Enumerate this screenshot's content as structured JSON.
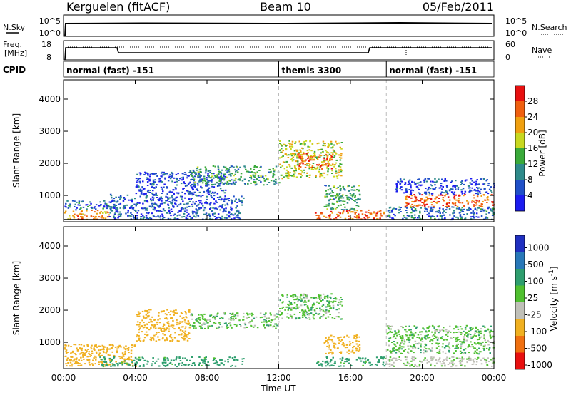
{
  "header": {
    "station": "Kerguelen (fitACF)",
    "beam": "Beam 10",
    "date": "05/Feb/2011"
  },
  "summary_panels": {
    "nsky_label": "N.Sky",
    "nsky_ticks": [
      "10^5",
      "10^0"
    ],
    "nsearch_label": "N.Search",
    "nsearch_ticks": [
      "10^5",
      "10^0"
    ],
    "freq_label": "Freq.",
    "freq_unit": "[MHz]",
    "freq_ticks": [
      "18",
      "8"
    ],
    "nave_label": "Nave",
    "nave_ticks": [
      "60",
      "0"
    ],
    "cpid_label": "CPID",
    "cpid_segments": [
      {
        "name": "normal (fast) -151",
        "start_h": 0,
        "end_h": 12
      },
      {
        "name": "themis 3300",
        "start_h": 12,
        "end_h": 18
      },
      {
        "name": "normal (fast) -151",
        "start_h": 18,
        "end_h": 24
      }
    ]
  },
  "chart_data": [
    {
      "type": "heatmap",
      "title": "",
      "quantity": "Power",
      "ylabel": "Slant Range [km]",
      "ylim": [
        180,
        4600
      ],
      "yticks": [
        "1000",
        "2000",
        "3000",
        "4000"
      ],
      "colorbar_label": "Power [dB]",
      "colorbar_ticks": [
        "4",
        "8",
        "12",
        "16",
        "20",
        "24",
        "28"
      ],
      "colorbar_range": [
        0,
        32
      ],
      "colors": [
        "#1c1cf0",
        "#2050c8",
        "#2e8a8a",
        "#3aaa3a",
        "#c8d820",
        "#f0a010",
        "#f06010",
        "#e81010"
      ],
      "regions": [
        {
          "t0": 0,
          "t1": 2.5,
          "r0": 200,
          "r1": 500,
          "p": 24
        },
        {
          "t0": 0,
          "t1": 3,
          "r0": 500,
          "r1": 800,
          "p": 8
        },
        {
          "t0": 2.5,
          "t1": 10,
          "r0": 200,
          "r1": 1000,
          "p": 6
        },
        {
          "t0": 4,
          "t1": 9,
          "r0": 1000,
          "r1": 1700,
          "p": 5
        },
        {
          "t0": 7,
          "t1": 12,
          "r0": 1300,
          "r1": 1900,
          "p": 12
        },
        {
          "t0": 12,
          "t1": 15.5,
          "r0": 1500,
          "r1": 2700,
          "p": 18
        },
        {
          "t0": 13,
          "t1": 15,
          "r0": 1800,
          "r1": 2300,
          "p": 26
        },
        {
          "t0": 14.5,
          "t1": 16.5,
          "r0": 500,
          "r1": 1300,
          "p": 12
        },
        {
          "t0": 14,
          "t1": 18,
          "r0": 200,
          "r1": 500,
          "p": 26
        },
        {
          "t0": 18,
          "t1": 24,
          "r0": 200,
          "r1": 600,
          "p": 8
        },
        {
          "t0": 19,
          "t1": 24,
          "r0": 600,
          "r1": 1000,
          "p": 26
        },
        {
          "t0": 18.5,
          "t1": 24,
          "r0": 1000,
          "r1": 1500,
          "p": 5
        }
      ]
    },
    {
      "type": "heatmap",
      "title": "",
      "quantity": "Velocity",
      "ylabel": "Slant Range [km]",
      "xlabel": "Time UT",
      "xlim": [
        0,
        24
      ],
      "xticks": [
        "00:00",
        "04:00",
        "08:00",
        "12:00",
        "16:00",
        "20:00",
        "00:00"
      ],
      "ylim": [
        180,
        4600
      ],
      "yticks": [
        "1000",
        "2000",
        "3000",
        "4000"
      ],
      "colorbar_label": "Velocity [m s-1]",
      "colorbar_ticks": [
        "1000",
        "500",
        "100",
        "25",
        "-25",
        "-100",
        "-500",
        "-1000"
      ],
      "colors": [
        "#2030c0",
        "#2878b8",
        "#2e9e6e",
        "#50c030",
        "#c0c0b8",
        "#f0b020",
        "#f07010",
        "#e81010"
      ],
      "regions": [
        {
          "t0": 0,
          "t1": 4,
          "r0": 200,
          "r1": 900,
          "v": -150
        },
        {
          "t0": 4,
          "t1": 7,
          "r0": 1000,
          "r1": 2000,
          "v": -300
        },
        {
          "t0": 2,
          "t1": 10,
          "r0": 200,
          "r1": 500,
          "v": 60
        },
        {
          "t0": 7,
          "t1": 12,
          "r0": 1400,
          "r1": 1900,
          "v": 0
        },
        {
          "t0": 12,
          "t1": 15.5,
          "r0": 1700,
          "r1": 2500,
          "v": 0
        },
        {
          "t0": 14.5,
          "t1": 16.5,
          "r0": 600,
          "r1": 1200,
          "v": -150
        },
        {
          "t0": 14,
          "t1": 18,
          "r0": 200,
          "r1": 500,
          "v": 60
        },
        {
          "t0": 18,
          "t1": 24,
          "r0": 600,
          "r1": 1500,
          "v": 0
        },
        {
          "t0": 18,
          "t1": 24,
          "r0": 200,
          "r1": 500,
          "v": -40
        }
      ]
    }
  ]
}
